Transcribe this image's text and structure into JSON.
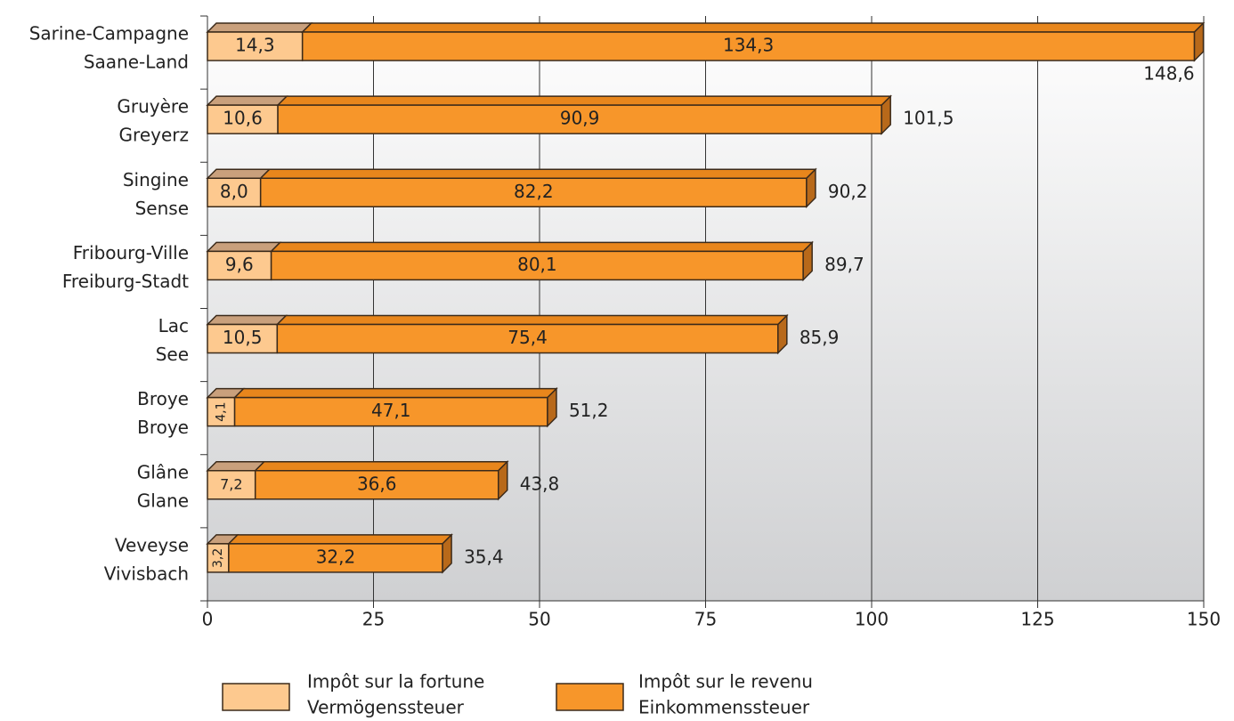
{
  "chart_data": {
    "type": "stacked_bar_horizontal",
    "categories": [
      [
        "Sarine-Campagne",
        "Saane-Land"
      ],
      [
        "Gruyère",
        "Greyerz"
      ],
      [
        "Singine",
        "Sense"
      ],
      [
        "Fribourg-Ville",
        "Freiburg-Stadt"
      ],
      [
        "Lac",
        "See"
      ],
      [
        "Broye",
        "Broye"
      ],
      [
        "Glâne",
        "Glane"
      ],
      [
        "Veveyse",
        "Vivisbach"
      ]
    ],
    "series": [
      {
        "name": [
          "Impôt sur la fortune",
          "Vermögenssteuer"
        ],
        "color": "#fdc98f",
        "top_color": "#c9a07c",
        "values": [
          14.3,
          10.6,
          8.0,
          9.6,
          10.5,
          4.1,
          7.2,
          3.2
        ],
        "value_labels": [
          "14,3",
          "10,6",
          "8,0",
          "9,6",
          "10,5",
          "4,1",
          "7,2",
          "3,2"
        ]
      },
      {
        "name": [
          "Impôt sur le revenu",
          "Einkommenssteuer"
        ],
        "color": "#f7962a",
        "top_color": "#e8861c",
        "values": [
          134.3,
          90.9,
          82.2,
          80.1,
          75.4,
          47.1,
          36.6,
          32.2
        ],
        "value_labels": [
          "134,3",
          "90,9",
          "82,2",
          "80,1",
          "75,4",
          "47,1",
          "36,6",
          "32,2"
        ]
      }
    ],
    "totals": [
      148.6,
      101.5,
      90.2,
      89.7,
      85.9,
      51.2,
      43.8,
      35.4
    ],
    "total_labels": [
      "148,6",
      "101,5",
      "90,2",
      "89,7",
      "85,9",
      "51,2",
      "43,8",
      "35,4"
    ],
    "xlim": [
      0,
      150
    ],
    "xticks": [
      0,
      25,
      50,
      75,
      100,
      125,
      150
    ],
    "grid": true
  }
}
